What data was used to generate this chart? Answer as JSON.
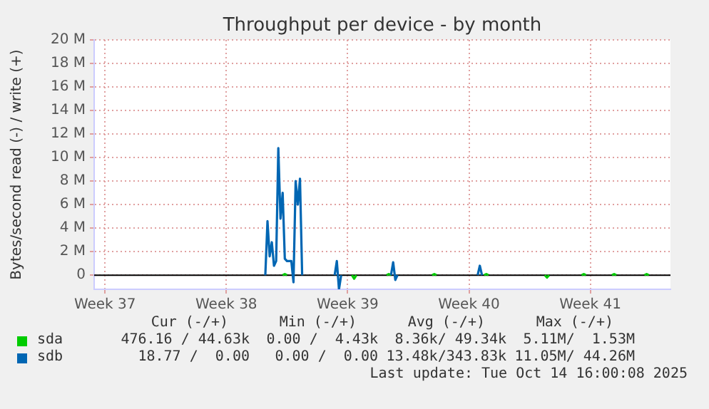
{
  "chart_data": {
    "type": "line",
    "title": "Throughput per device - by month",
    "ylabel": "Bytes/second read (-) / write (+)",
    "categories": [
      null,
      null,
      null,
      null,
      null,
      "Week 37",
      null,
      null,
      null,
      null,
      null,
      null,
      null,
      null,
      null,
      null,
      null,
      null,
      null,
      null,
      null,
      null,
      null,
      null,
      null,
      null,
      null,
      null,
      null,
      null,
      null,
      null,
      null,
      null,
      null,
      null,
      null,
      null,
      null,
      null,
      null,
      null,
      null,
      null,
      null,
      null,
      null,
      null,
      null,
      null,
      null,
      null,
      null,
      null,
      null,
      null,
      null,
      null,
      null,
      null,
      null,
      "Week 38",
      null,
      null,
      null,
      null,
      null,
      null,
      null,
      null,
      null,
      null,
      null,
      null,
      null,
      null,
      null,
      null,
      null,
      null,
      null,
      null,
      null,
      null,
      null,
      null,
      null,
      null,
      null,
      null,
      null,
      null,
      null,
      null,
      null,
      null,
      null,
      null,
      null,
      null,
      null,
      null,
      null,
      null,
      null,
      null,
      null,
      null,
      null,
      null,
      null,
      null,
      null,
      null,
      null,
      null,
      null,
      "Week 39",
      null,
      null,
      null,
      null,
      null,
      null,
      null,
      null,
      null,
      null,
      null,
      null,
      null,
      null,
      null,
      null,
      null,
      null,
      null,
      null,
      null,
      null,
      null,
      null,
      null,
      null,
      null,
      null,
      null,
      null,
      null,
      null,
      null,
      null,
      null,
      null,
      null,
      null,
      null,
      null,
      null,
      null,
      null,
      null,
      null,
      null,
      null,
      null,
      null,
      null,
      null,
      null,
      null,
      null,
      null,
      "Week 40",
      null,
      null,
      null,
      null,
      null,
      null,
      null,
      null,
      null,
      null,
      null,
      null,
      null,
      null,
      null,
      null,
      null,
      null,
      null,
      null,
      null,
      null,
      null,
      null,
      null,
      null,
      null,
      null,
      null,
      null,
      null,
      null,
      null,
      null,
      null,
      null,
      null,
      null,
      null,
      null,
      null,
      null,
      null,
      null,
      null,
      null,
      null,
      null,
      null,
      null,
      null,
      null,
      null,
      null,
      null,
      "Week 41",
      null,
      null,
      null,
      null,
      null,
      null,
      null,
      null,
      null,
      null,
      null,
      null,
      null,
      null,
      null,
      null,
      null,
      null,
      null,
      null,
      null,
      null,
      null,
      null,
      null,
      null,
      null,
      null,
      null,
      null,
      null,
      null,
      null,
      null,
      null,
      null,
      null
    ],
    "series": [
      {
        "name": "sda",
        "color": "#00cc00",
        "values": [
          null,
          null,
          null,
          null,
          null,
          null,
          null,
          null,
          null,
          null,
          null,
          null,
          null,
          null,
          null,
          null,
          null,
          null,
          null,
          null,
          null,
          null,
          null,
          null,
          null,
          null,
          null,
          null,
          null,
          null,
          null,
          null,
          null,
          null,
          null,
          null,
          null,
          null,
          null,
          null,
          null,
          null,
          null,
          null,
          null,
          null,
          null,
          null,
          null,
          null,
          null,
          null,
          null,
          null,
          null,
          null,
          null,
          null,
          null,
          null,
          null,
          null,
          null,
          null,
          null,
          null,
          null,
          null,
          null,
          null,
          null,
          null,
          null,
          null,
          null,
          null,
          null,
          null,
          null,
          null,
          null,
          null,
          null,
          null,
          null,
          null,
          null,
          0,
          0.1,
          0,
          null,
          null,
          null,
          null,
          null,
          null,
          null,
          null,
          null,
          null,
          null,
          null,
          null,
          null,
          null,
          null,
          null,
          null,
          null,
          null,
          null,
          null,
          null,
          null,
          null,
          null,
          null,
          null,
          null,
          0,
          -0.3,
          0,
          null,
          null,
          null,
          null,
          null,
          null,
          null,
          null,
          null,
          null,
          null,
          null,
          null,
          0,
          0.1,
          0,
          null,
          null,
          null,
          null,
          null,
          null,
          null,
          null,
          null,
          null,
          null,
          null,
          null,
          null,
          null,
          null,
          null,
          null,
          0,
          0.1,
          0,
          null,
          null,
          null,
          null,
          null,
          null,
          null,
          null,
          null,
          null,
          null,
          null,
          null,
          null,
          null,
          null,
          null,
          null,
          null,
          null,
          null,
          0,
          0.1,
          0,
          null,
          null,
          null,
          null,
          null,
          null,
          null,
          null,
          null,
          null,
          null,
          null,
          null,
          null,
          null,
          null,
          null,
          null,
          null,
          null,
          null,
          null,
          null,
          null,
          null,
          0,
          -0.2,
          0,
          null,
          null,
          null,
          null,
          null,
          null,
          null,
          null,
          null,
          null,
          null,
          null,
          null,
          null,
          0,
          0.1,
          0,
          null,
          null,
          null,
          null,
          null,
          null,
          null,
          null,
          null,
          null,
          null,
          0,
          0.1,
          0,
          null,
          null,
          null,
          null,
          null,
          null,
          null,
          null,
          null,
          null,
          null,
          null,
          0,
          0.1,
          0,
          null,
          null,
          null,
          null,
          null,
          null,
          null,
          null,
          null,
          null
        ]
      },
      {
        "name": "sdb",
        "color": "#0066b3",
        "values": [
          null,
          null,
          null,
          null,
          null,
          null,
          null,
          null,
          null,
          null,
          null,
          null,
          null,
          null,
          null,
          null,
          null,
          null,
          null,
          null,
          null,
          null,
          null,
          null,
          null,
          null,
          null,
          null,
          null,
          null,
          null,
          null,
          null,
          null,
          null,
          null,
          null,
          null,
          null,
          null,
          null,
          null,
          null,
          null,
          null,
          null,
          null,
          null,
          null,
          null,
          null,
          null,
          null,
          null,
          null,
          null,
          null,
          null,
          null,
          null,
          null,
          null,
          null,
          null,
          null,
          null,
          null,
          null,
          null,
          null,
          null,
          null,
          null,
          null,
          null,
          null,
          null,
          null,
          null,
          0,
          4.6,
          1.6,
          2.8,
          0.8,
          1.2,
          10.8,
          4.8,
          7,
          1.4,
          1.2,
          1.2,
          1.2,
          -0.6,
          8,
          6,
          8.2,
          0,
          null,
          null,
          null,
          null,
          null,
          null,
          null,
          null,
          null,
          null,
          null,
          null,
          null,
          null,
          0,
          1.2,
          -1.2,
          0,
          null,
          null,
          null,
          null,
          null,
          null,
          null,
          null,
          null,
          null,
          null,
          null,
          null,
          null,
          null,
          null,
          null,
          null,
          null,
          null,
          null,
          null,
          0,
          1.1,
          -0.4,
          0,
          null,
          null,
          null,
          null,
          null,
          null,
          null,
          null,
          null,
          null,
          null,
          null,
          null,
          null,
          null,
          null,
          null,
          null,
          null,
          null,
          null,
          null,
          null,
          null,
          null,
          null,
          null,
          null,
          null,
          null,
          null,
          null,
          null,
          null,
          null,
          null,
          0,
          0.8,
          0,
          null,
          null,
          null,
          null,
          null,
          null,
          null,
          null,
          null,
          null,
          null,
          null,
          null,
          null,
          null,
          null,
          null,
          null,
          null,
          null,
          null,
          null,
          null,
          null,
          null,
          null,
          null,
          null,
          null,
          null,
          null,
          null,
          null,
          null,
          null,
          null,
          null,
          null,
          null,
          null,
          null,
          null,
          null,
          null,
          null,
          null,
          null,
          null,
          null,
          null,
          null,
          null,
          null,
          null,
          null,
          null,
          null,
          null,
          null,
          null,
          null,
          null,
          null,
          null,
          null,
          null,
          null,
          null,
          null,
          null,
          null,
          null,
          null,
          null,
          null,
          null,
          null,
          null,
          null,
          null,
          null,
          null,
          null,
          null,
          null,
          null,
          null
        ]
      }
    ],
    "ylim": [
      -1.2,
      20
    ],
    "yticks": [
      {
        "value": 0,
        "label": "0"
      },
      {
        "value": 2,
        "label": "2 M"
      },
      {
        "value": 4,
        "label": "4 M"
      },
      {
        "value": 6,
        "label": "6 M"
      },
      {
        "value": 8,
        "label": "8 M"
      },
      {
        "value": 10,
        "label": "10 M"
      },
      {
        "value": 12,
        "label": "12 M"
      },
      {
        "value": 14,
        "label": "14 M"
      },
      {
        "value": 16,
        "label": "16 M"
      },
      {
        "value": 18,
        "label": "18 M"
      },
      {
        "value": 20,
        "label": "20 M"
      }
    ],
    "ref_lines": [
      {
        "axis": "y",
        "value": 0,
        "color": "#000000"
      }
    ],
    "grid": true,
    "legend": "bottom",
    "marker": "none",
    "line_style": "solid",
    "annotations": [
      "Cur (-/+)",
      "Min (-/+)",
      "Avg (-/+)",
      "Max (-/+)",
      "476.16 / 44.63k",
      "0.00 /  4.43k",
      "8.36k/ 49.34k",
      "5.11M/  1.53M",
      "18.77 /  0.00",
      "0.00 /  0.00",
      "13.48k/343.83k",
      "11.05M/ 44.26M",
      "Last update: Tue Oct 14 16:00:08 2025"
    ]
  }
}
